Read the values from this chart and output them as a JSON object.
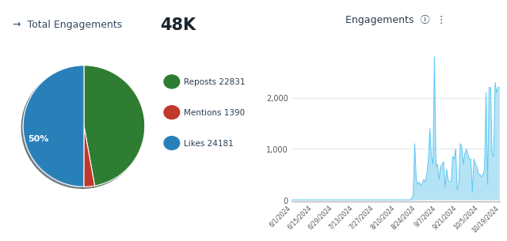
{
  "title_prefix": "→  Total Engagements ",
  "title_value": "48K",
  "pie_values": [
    22831,
    1390,
    24181
  ],
  "pie_colors": [
    "#2e7d32",
    "#c0392b",
    "#2980b9"
  ],
  "legend_labels": [
    "Reposts 22831",
    "Mentions 1390",
    "Likes 24181"
  ],
  "legend_colors": [
    "#2e7d32",
    "#c0392b",
    "#2980b9"
  ],
  "line_title": "Engagements",
  "line_color": "#5bc8f5",
  "line_fill_color": "#a8dff5",
  "background_color": "#ffffff",
  "xtick_labels": [
    "6/1/2024",
    "6/15/2024",
    "6/29/2024",
    "7/13/2024",
    "7/27/2024",
    "8/10/2024",
    "8/24/2024",
    "9/7/2024",
    "9/21/2024",
    "10/5/2024",
    "10/19/2024"
  ],
  "y_values": [
    0,
    0,
    0,
    0,
    0,
    0,
    0,
    0,
    0,
    0,
    0,
    0,
    0,
    0,
    0,
    0,
    0,
    0,
    0,
    0,
    0,
    0,
    0,
    0,
    0,
    0,
    0,
    0,
    0,
    0,
    0,
    0,
    0,
    0,
    0,
    0,
    0,
    0,
    0,
    0,
    0,
    0,
    0,
    0,
    0,
    0,
    0,
    0,
    0,
    0,
    0,
    0,
    0,
    0,
    0,
    0,
    0,
    0,
    0,
    0,
    0,
    0,
    0,
    0,
    0,
    0,
    0,
    0,
    0,
    0,
    0,
    0,
    0,
    0,
    0,
    0,
    0,
    0,
    0,
    30,
    100,
    1100,
    400,
    300,
    350,
    280,
    320,
    400,
    350,
    500,
    800,
    1400,
    850,
    700,
    2800,
    650,
    700,
    400,
    650,
    700,
    750,
    250,
    600,
    400,
    350,
    350,
    850,
    800,
    1000,
    200,
    300,
    1100,
    1050,
    700,
    900,
    1000,
    900,
    800,
    800,
    150,
    800,
    700,
    650,
    500,
    500,
    450,
    500,
    600,
    2100,
    300,
    2200,
    2200,
    900,
    850,
    2300,
    2100,
    2200,
    2200
  ]
}
